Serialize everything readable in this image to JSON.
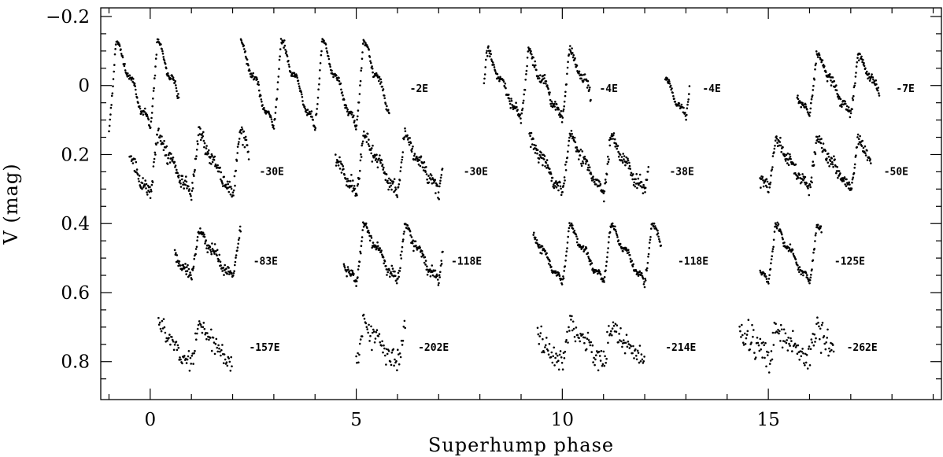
{
  "chart_data": {
    "type": "scatter",
    "xlabel": "Superhump phase",
    "ylabel": "V (mag)",
    "xlim": [
      -1.2,
      19.2
    ],
    "ylim": [
      0.91,
      -0.225
    ],
    "y_inverted": true,
    "xticks": [
      0,
      5,
      10,
      15
    ],
    "yticks": [
      -0.2,
      0,
      0.2,
      0.4,
      0.6,
      0.8
    ],
    "ytick_labels": [
      "−0.2",
      "0",
      "0.2",
      "0.4",
      "0.6",
      "0.8"
    ],
    "grid": false,
    "segments": [
      {
        "label": "-2E",
        "x_start": 2.2,
        "x_end": 5.8,
        "offset": 0.0,
        "amplitude": 0.255,
        "noise": 0.005,
        "sub_ranges": [
          [
            -1.0,
            0.7
          ],
          [
            2.2,
            5.8
          ]
        ],
        "label_x": 6.3,
        "label_y": 0.01
      },
      {
        "label": "-4E",
        "x_start": 8.1,
        "x_end": 10.7,
        "offset": 0.0,
        "amplitude": 0.2,
        "noise": 0.008,
        "sub_ranges": [
          [
            8.1,
            10.7
          ]
        ],
        "label_x": 10.9,
        "label_y": 0.01
      },
      {
        "label": "-4E",
        "x_start": 12.5,
        "x_end": 13.1,
        "offset": 0.0,
        "amplitude": 0.19,
        "noise": 0.004,
        "sub_ranges": [
          [
            12.5,
            13.1
          ]
        ],
        "label_x": 13.4,
        "label_y": 0.01
      },
      {
        "label": "-7E",
        "x_start": 15.7,
        "x_end": 17.7,
        "offset": 0.0,
        "amplitude": 0.18,
        "noise": 0.006,
        "sub_ranges": [
          [
            15.7,
            17.7
          ]
        ],
        "label_x": 18.1,
        "label_y": 0.01
      },
      {
        "label": "-30E",
        "x_start": -0.5,
        "x_end": 2.4,
        "offset": 0.23,
        "amplitude": 0.18,
        "noise": 0.012,
        "sub_ranges": [
          [
            -0.5,
            2.4
          ]
        ],
        "label_x": 2.65,
        "label_y": 0.25
      },
      {
        "label": "-30E",
        "x_start": 4.5,
        "x_end": 7.1,
        "offset": 0.23,
        "amplitude": 0.17,
        "noise": 0.01,
        "sub_ranges": [
          [
            4.5,
            7.1
          ]
        ],
        "label_x": 7.6,
        "label_y": 0.25
      },
      {
        "label": "-38E",
        "x_start": 9.2,
        "x_end": 12.1,
        "offset": 0.23,
        "amplitude": 0.17,
        "noise": 0.01,
        "sub_ranges": [
          [
            9.2,
            12.1
          ]
        ],
        "label_x": 12.6,
        "label_y": 0.25
      },
      {
        "label": "-50E",
        "x_start": 14.8,
        "x_end": 17.5,
        "offset": 0.23,
        "amplitude": 0.15,
        "noise": 0.01,
        "sub_ranges": [
          [
            14.8,
            17.5
          ]
        ],
        "label_x": 17.8,
        "label_y": 0.25
      },
      {
        "label": "-83E",
        "x_start": 0.6,
        "x_end": 2.2,
        "offset": 0.49,
        "amplitude": 0.14,
        "noise": 0.008,
        "sub_ranges": [
          [
            0.6,
            2.2
          ]
        ],
        "label_x": 2.5,
        "label_y": 0.51
      },
      {
        "label": "-118E",
        "x_start": 4.7,
        "x_end": 7.1,
        "offset": 0.49,
        "amplitude": 0.17,
        "noise": 0.008,
        "sub_ranges": [
          [
            4.7,
            7.1
          ]
        ],
        "label_x": 7.3,
        "label_y": 0.51
      },
      {
        "label": "-118E",
        "x_start": 9.3,
        "x_end": 12.4,
        "offset": 0.49,
        "amplitude": 0.17,
        "noise": 0.005,
        "sub_ranges": [
          [
            9.3,
            12.4
          ]
        ],
        "label_x": 12.8,
        "label_y": 0.51
      },
      {
        "label": "-125E",
        "x_start": 14.8,
        "x_end": 16.3,
        "offset": 0.49,
        "amplitude": 0.17,
        "noise": 0.005,
        "sub_ranges": [
          [
            14.8,
            16.3
          ]
        ],
        "label_x": 16.6,
        "label_y": 0.51
      },
      {
        "label": "-157E",
        "x_start": 0.2,
        "x_end": 2.0,
        "offset": 0.75,
        "amplitude": 0.13,
        "noise": 0.014,
        "sub_ranges": [
          [
            0.2,
            2.0
          ]
        ],
        "label_x": 2.4,
        "label_y": 0.76
      },
      {
        "label": "-202E",
        "x_start": 5.0,
        "x_end": 6.2,
        "offset": 0.75,
        "amplitude": 0.12,
        "noise": 0.018,
        "sub_ranges": [
          [
            5.0,
            6.2
          ]
        ],
        "label_x": 6.5,
        "label_y": 0.76
      },
      {
        "label": "-214E",
        "x_start": 9.4,
        "x_end": 12.0,
        "offset": 0.75,
        "amplitude": 0.12,
        "noise": 0.018,
        "sub_ranges": [
          [
            9.4,
            12.0
          ]
        ],
        "label_x": 12.5,
        "label_y": 0.76
      },
      {
        "label": "-262E",
        "x_start": 14.3,
        "x_end": 16.6,
        "offset": 0.75,
        "amplitude": 0.08,
        "noise": 0.025,
        "sub_ranges": [
          [
            14.3,
            16.6
          ]
        ],
        "label_x": 16.9,
        "label_y": 0.76
      }
    ]
  }
}
